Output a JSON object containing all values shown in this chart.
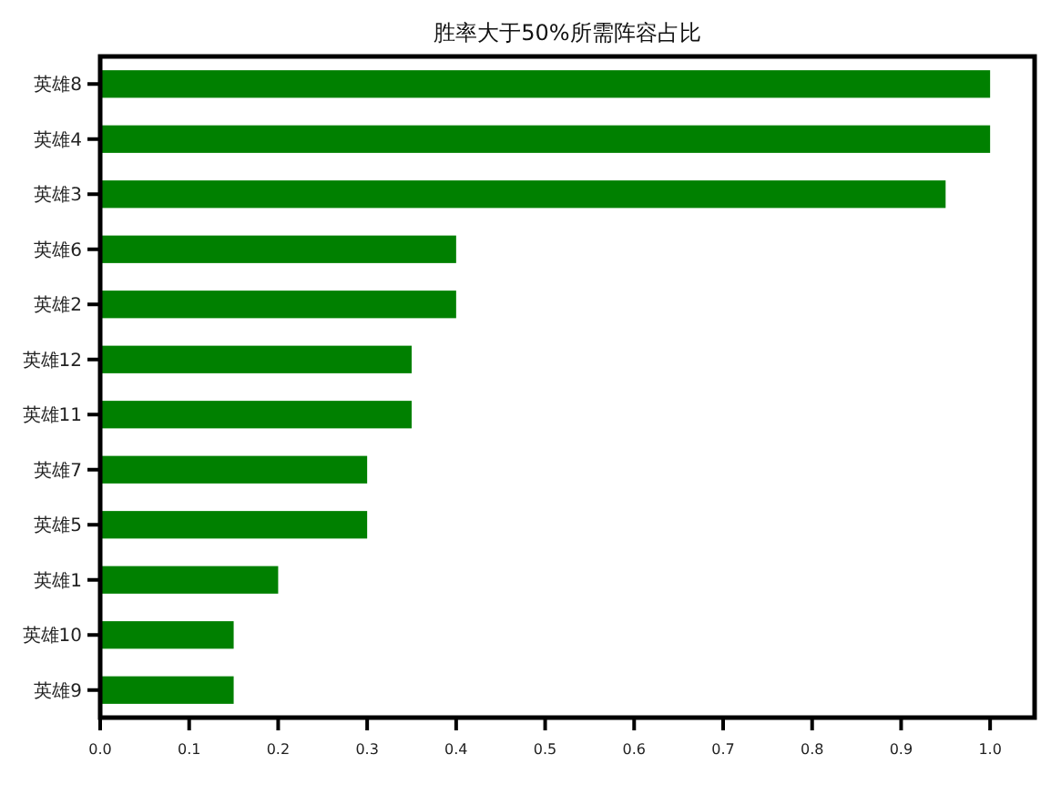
{
  "chart_data": {
    "type": "bar",
    "orientation": "horizontal",
    "title": "胜率大于50%所需阵容占比",
    "categories": [
      "英雄8",
      "英雄4",
      "英雄3",
      "英雄6",
      "英雄2",
      "英雄12",
      "英雄11",
      "英雄7",
      "英雄5",
      "英雄1",
      "英雄10",
      "英雄9"
    ],
    "values": [
      1.0,
      1.0,
      0.95,
      0.4,
      0.4,
      0.35,
      0.35,
      0.3,
      0.3,
      0.2,
      0.15,
      0.15
    ],
    "color": "#008000",
    "xlim": [
      0,
      1.05
    ],
    "xticks": [
      {
        "value": 0,
        "label": "0.0"
      },
      {
        "value": 0.1,
        "label": "0.1"
      },
      {
        "value": 0.2,
        "label": "0.2"
      },
      {
        "value": 0.3,
        "label": "0.3"
      },
      {
        "value": 0.4,
        "label": "0.4"
      },
      {
        "value": 0.5,
        "label": "0.5"
      },
      {
        "value": 0.6,
        "label": "0.6"
      },
      {
        "value": 0.7,
        "label": "0.7"
      },
      {
        "value": 0.8,
        "label": "0.8"
      },
      {
        "value": 0.9,
        "label": "0.9"
      },
      {
        "value": 1.0,
        "label": "1.0"
      }
    ]
  }
}
